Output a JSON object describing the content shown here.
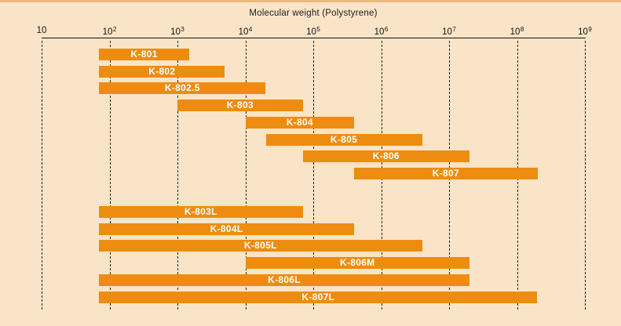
{
  "chart_data": {
    "type": "bar",
    "subtype": "horizontal-range-gantt",
    "title": "Molecular weight (Polystyrene)",
    "xlabel": "Molecular weight (Polystyrene)",
    "x_scale": "log10",
    "x_min": 10,
    "x_max": 1000000000,
    "x_tick_base": "10",
    "x_tick_exponents": [
      1,
      2,
      3,
      4,
      5,
      6,
      7,
      8,
      9
    ],
    "grid": "vertical-dashed",
    "legend": "none",
    "colors": {
      "background": "#f9e4c7",
      "bar": "#ee8c10",
      "bar_text": "#ffffff",
      "axis_text": "#111111",
      "top_strip": "#e9b97f"
    },
    "groups": [
      {
        "name": "standard-columns",
        "items": [
          {
            "label": "K-801",
            "min": 70,
            "max": 1500
          },
          {
            "label": "K-802",
            "min": 70,
            "max": 5000
          },
          {
            "label": "K-802.5",
            "min": 70,
            "max": 20000
          },
          {
            "label": "K-803",
            "min": 1000,
            "max": 70000
          },
          {
            "label": "K-804",
            "min": 10000,
            "max": 400000
          },
          {
            "label": "K-805",
            "min": 20000,
            "max": 4000000
          },
          {
            "label": "K-806",
            "min": 70000,
            "max": 20000000
          },
          {
            "label": "K-807",
            "min": 400000,
            "max": 200000000
          }
        ]
      },
      {
        "name": "linear-columns",
        "items": [
          {
            "label": "K-803L",
            "min": 70,
            "max": 70000
          },
          {
            "label": "K-804L",
            "min": 70,
            "max": 400000
          },
          {
            "label": "K-805L",
            "min": 70,
            "max": 4000000
          },
          {
            "label": "K-806M",
            "min": 10000,
            "max": 20000000
          },
          {
            "label": "K-806L",
            "min": 70,
            "max": 20000000
          },
          {
            "label": "K-807L",
            "min": 70,
            "max": 200000000
          }
        ]
      }
    ]
  }
}
